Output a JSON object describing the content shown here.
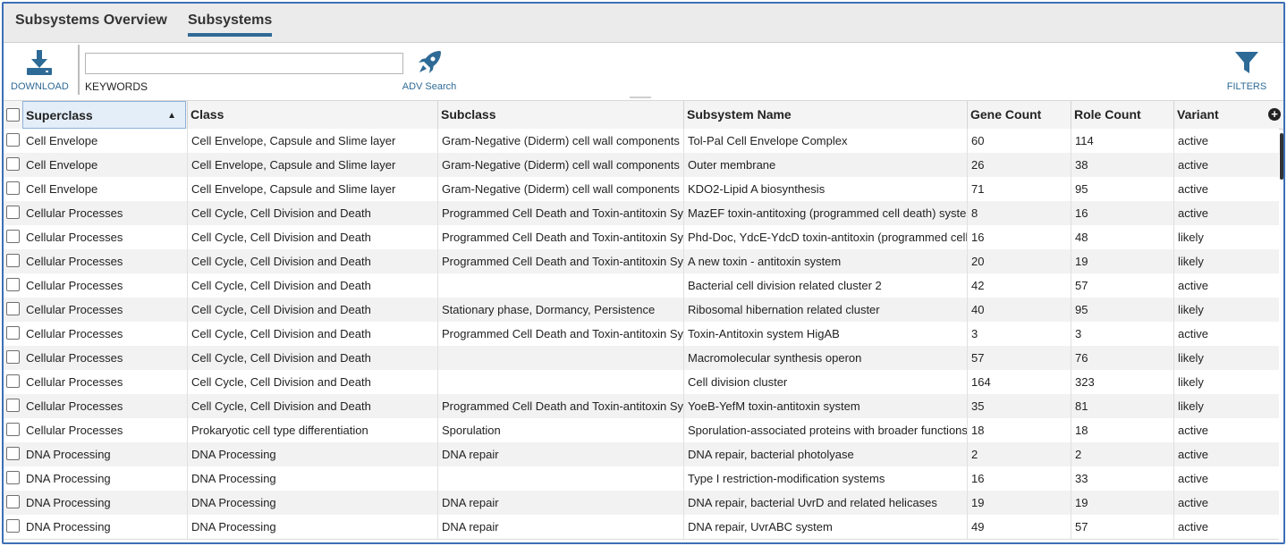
{
  "tabs": [
    {
      "label": "Subsystems Overview",
      "active": false
    },
    {
      "label": "Subsystems",
      "active": true
    }
  ],
  "toolbar": {
    "download_label": "DOWNLOAD",
    "keywords_label": "KEYWORDS",
    "keywords_value": "",
    "adv_search_label": "ADV Search",
    "filters_label": "FILTERS"
  },
  "colors": {
    "accent": "#2e6a96",
    "frame": "#3d6fb6"
  },
  "table": {
    "columns": [
      "Superclass",
      "Class",
      "Subclass",
      "Subsystem Name",
      "Gene Count",
      "Role Count",
      "Variant"
    ],
    "sorted_column": "Superclass",
    "sort_direction": "ascending",
    "rows": [
      [
        "Cell Envelope",
        "Cell Envelope, Capsule and Slime layer",
        "Gram-Negative (Diderm) cell wall components",
        "Tol-Pal Cell Envelope Complex",
        "60",
        "114",
        "active"
      ],
      [
        "Cell Envelope",
        "Cell Envelope, Capsule and Slime layer",
        "Gram-Negative (Diderm) cell wall components",
        "Outer membrane",
        "26",
        "38",
        "active"
      ],
      [
        "Cell Envelope",
        "Cell Envelope, Capsule and Slime layer",
        "Gram-Negative (Diderm) cell wall components",
        "KDO2-Lipid A biosynthesis",
        "71",
        "95",
        "active"
      ],
      [
        "Cellular Processes",
        "Cell Cycle, Cell Division and Death",
        "Programmed Cell Death and Toxin-antitoxin Sys",
        "MazEF toxin-antitoxing (programmed cell death) system",
        "8",
        "16",
        "active"
      ],
      [
        "Cellular Processes",
        "Cell Cycle, Cell Division and Death",
        "Programmed Cell Death and Toxin-antitoxin Sys",
        "Phd-Doc, YdcE-YdcD toxin-antitoxin (programmed cell d",
        "16",
        "48",
        "likely"
      ],
      [
        "Cellular Processes",
        "Cell Cycle, Cell Division and Death",
        "Programmed Cell Death and Toxin-antitoxin Sys",
        "A new toxin - antitoxin system",
        "20",
        "19",
        "likely"
      ],
      [
        "Cellular Processes",
        "Cell Cycle, Cell Division and Death",
        "",
        "Bacterial cell division related cluster 2",
        "42",
        "57",
        "active"
      ],
      [
        "Cellular Processes",
        "Cell Cycle, Cell Division and Death",
        "Stationary phase, Dormancy, Persistence",
        "Ribosomal hibernation related cluster",
        "40",
        "95",
        "likely"
      ],
      [
        "Cellular Processes",
        "Cell Cycle, Cell Division and Death",
        "Programmed Cell Death and Toxin-antitoxin Sys",
        "Toxin-Antitoxin system HigAB",
        "3",
        "3",
        "active"
      ],
      [
        "Cellular Processes",
        "Cell Cycle, Cell Division and Death",
        "",
        "Macromolecular synthesis operon",
        "57",
        "76",
        "likely"
      ],
      [
        "Cellular Processes",
        "Cell Cycle, Cell Division and Death",
        "",
        "Cell division cluster",
        "164",
        "323",
        "likely"
      ],
      [
        "Cellular Processes",
        "Cell Cycle, Cell Division and Death",
        "Programmed Cell Death and Toxin-antitoxin Sys",
        "YoeB-YefM toxin-antitoxin system",
        "35",
        "81",
        "likely"
      ],
      [
        "Cellular Processes",
        "Prokaryotic cell type differentiation",
        "Sporulation",
        "Sporulation-associated proteins with broader functions",
        "18",
        "18",
        "active"
      ],
      [
        "DNA Processing",
        "DNA Processing",
        "DNA repair",
        "DNA repair, bacterial photolyase",
        "2",
        "2",
        "active"
      ],
      [
        "DNA Processing",
        "DNA Processing",
        "",
        "Type I restriction-modification systems",
        "16",
        "33",
        "active"
      ],
      [
        "DNA Processing",
        "DNA Processing",
        "DNA repair",
        "DNA repair, bacterial UvrD and related helicases",
        "19",
        "19",
        "active"
      ],
      [
        "DNA Processing",
        "DNA Processing",
        "DNA repair",
        "DNA repair, UvrABC system",
        "49",
        "57",
        "active"
      ]
    ]
  }
}
